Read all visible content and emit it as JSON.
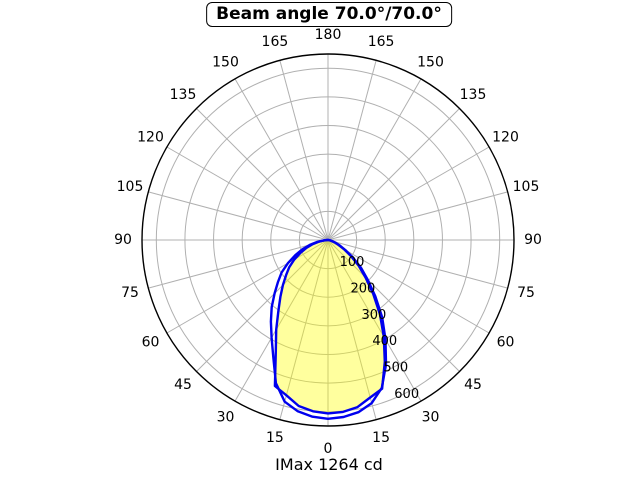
{
  "chart_data": {
    "type": "polar",
    "title": "Beam angle 70.0°/70.0°",
    "beam_angle": "70.0°/70.0°",
    "footer": "IMax 1264 cd",
    "imax_cd": 1264,
    "unit": "cd",
    "r_max_cd": 650,
    "r_ticks_cd": [
      100,
      200,
      300,
      400,
      500,
      600
    ],
    "r_label_angle_deg": 22.5,
    "angle_ticks_deg": [
      0,
      15,
      30,
      45,
      60,
      75,
      90,
      105,
      120,
      135,
      150,
      165,
      180
    ],
    "angle_step_deg": 15,
    "angles_deg": [
      0,
      5,
      10,
      15,
      20,
      25,
      30,
      35,
      40,
      45,
      50,
      55,
      60,
      65,
      70,
      75,
      80,
      85,
      90
    ],
    "series": [
      {
        "name": "curve-outer",
        "left_cd": [
          625,
          620,
          608,
          585,
          532,
          452,
          394,
          348,
          306,
          264,
          228,
          198,
          162,
          126,
          96,
          66,
          38,
          15,
          3
        ],
        "right_cd": [
          625,
          621,
          611,
          590,
          550,
          480,
          402,
          330,
          257,
          196,
          150,
          106,
          70,
          45,
          28,
          15,
          8,
          3,
          1
        ]
      },
      {
        "name": "curve-inner",
        "left_cd": [
          606,
          601,
          589,
          562,
          543,
          432,
          362,
          302,
          259,
          223,
          191,
          165,
          136,
          106,
          80,
          55,
          32,
          12,
          2
        ],
        "right_cd": [
          606,
          603,
          593,
          570,
          553,
          470,
          390,
          316,
          246,
          186,
          140,
          98,
          65,
          40,
          24,
          12,
          6,
          2,
          1
        ]
      }
    ],
    "filled_series_index": 1,
    "legend": "none",
    "grid": "on",
    "colors": {
      "curve": "#0000ee",
      "fill": "#ffff00",
      "fill_opacity": 0.38,
      "grid": "#b0b0b0",
      "outer_ring": "#000000",
      "text": "#000000",
      "background": "#ffffff"
    }
  }
}
